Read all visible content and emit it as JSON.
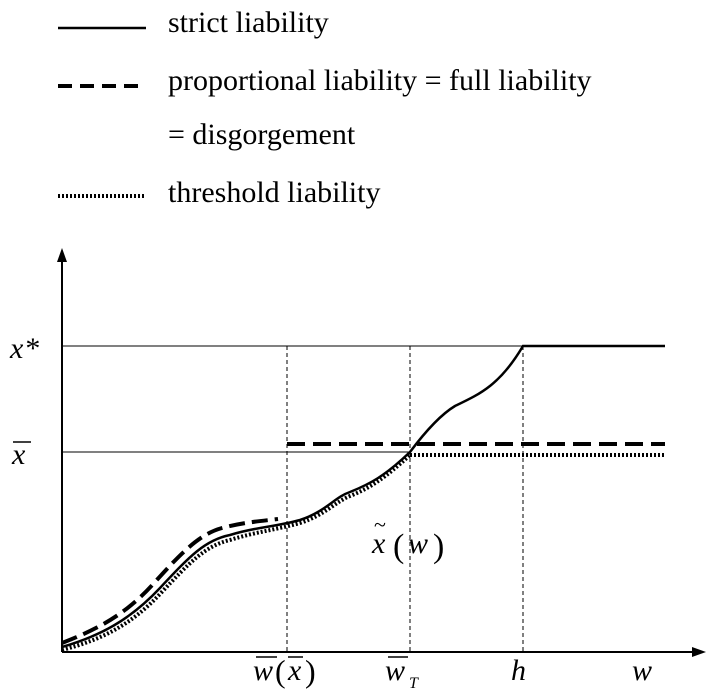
{
  "legend": [
    {
      "label": "strict liability",
      "style": "solid"
    },
    {
      "label": "proportional liability = full liability",
      "style": "dashed"
    },
    {
      "label": "= disgorgement",
      "style": "none"
    },
    {
      "label": "threshold liability",
      "style": "dotted"
    }
  ],
  "axis_labels": {
    "y_ticks": [
      {
        "symbol": "x",
        "superscript": "*"
      },
      {
        "symbol": "x",
        "overbar": true
      }
    ],
    "x_ticks": [
      {
        "text": "w(x)",
        "note": "w-bar of x-bar"
      },
      {
        "text": "w",
        "subscript": "T",
        "overbar": true
      },
      {
        "text": "h"
      },
      {
        "text": "w"
      }
    ]
  },
  "curve_label": {
    "text": "x̃(w)"
  },
  "colors": {
    "ink": "#000000",
    "background": "#ffffff"
  }
}
